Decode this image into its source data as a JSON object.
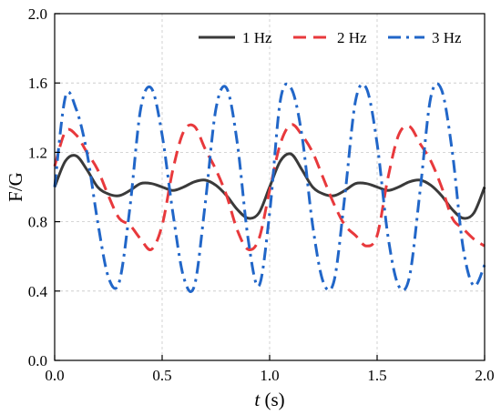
{
  "chart_data": {
    "type": "line",
    "xlabel_italic": "t",
    "xlabel_unit": " (s)",
    "ylabel": "F/G",
    "xlim": [
      0.0,
      2.0
    ],
    "ylim": [
      0.0,
      2.0
    ],
    "x_ticks": [
      "0.0",
      "0.5",
      "1.0",
      "1.5",
      "2.0"
    ],
    "y_ticks": [
      "0.0",
      "0.4",
      "0.8",
      "1.2",
      "1.6",
      "2.0"
    ],
    "grid": true,
    "legend_position": "top-right",
    "x": [
      0.0,
      0.05,
      0.1,
      0.15,
      0.2,
      0.25,
      0.3,
      0.35,
      0.4,
      0.45,
      0.5,
      0.55,
      0.6,
      0.65,
      0.7,
      0.75,
      0.8,
      0.85,
      0.9,
      0.95,
      1.0,
      1.05,
      1.1,
      1.15,
      1.2,
      1.25,
      1.3,
      1.35,
      1.4,
      1.45,
      1.5,
      1.55,
      1.6,
      1.65,
      1.7,
      1.75,
      1.8,
      1.85,
      1.9,
      1.95,
      2.0
    ],
    "series": [
      {
        "name": "1 Hz",
        "color": "#3a3a3a",
        "dash": "solid",
        "values": [
          1.0,
          1.15,
          1.18,
          1.1,
          1.0,
          0.96,
          0.95,
          0.98,
          1.02,
          1.02,
          1.0,
          0.98,
          1.0,
          1.03,
          1.04,
          1.01,
          0.95,
          0.87,
          0.82,
          0.85,
          1.0,
          1.15,
          1.19,
          1.1,
          1.0,
          0.96,
          0.95,
          0.98,
          1.02,
          1.02,
          1.0,
          0.98,
          1.0,
          1.03,
          1.04,
          1.01,
          0.95,
          0.87,
          0.82,
          0.85,
          1.0
        ]
      },
      {
        "name": "2 Hz",
        "color": "#e8393c",
        "dash": "dash",
        "values": [
          1.12,
          1.32,
          1.3,
          1.2,
          1.1,
          0.95,
          0.82,
          0.78,
          0.7,
          0.64,
          0.78,
          1.1,
          1.32,
          1.35,
          1.22,
          1.1,
          0.95,
          0.75,
          0.64,
          0.7,
          0.98,
          1.25,
          1.36,
          1.3,
          1.2,
          1.05,
          0.9,
          0.78,
          0.72,
          0.66,
          0.72,
          1.05,
          1.3,
          1.35,
          1.25,
          1.15,
          1.0,
          0.82,
          0.76,
          0.7,
          0.66
        ]
      },
      {
        "name": "3 Hz",
        "color": "#2166c8",
        "dash": "dashdot",
        "values": [
          1.0,
          1.52,
          1.45,
          1.2,
          0.8,
          0.48,
          0.45,
          0.88,
          1.45,
          1.57,
          1.3,
          0.85,
          0.48,
          0.43,
          0.9,
          1.45,
          1.57,
          1.25,
          0.7,
          0.43,
          0.85,
          1.5,
          1.57,
          1.3,
          0.78,
          0.45,
          0.46,
          0.95,
          1.5,
          1.57,
          1.25,
          0.72,
          0.43,
          0.48,
          0.98,
          1.52,
          1.56,
          1.2,
          0.65,
          0.43,
          0.55
        ]
      }
    ]
  }
}
